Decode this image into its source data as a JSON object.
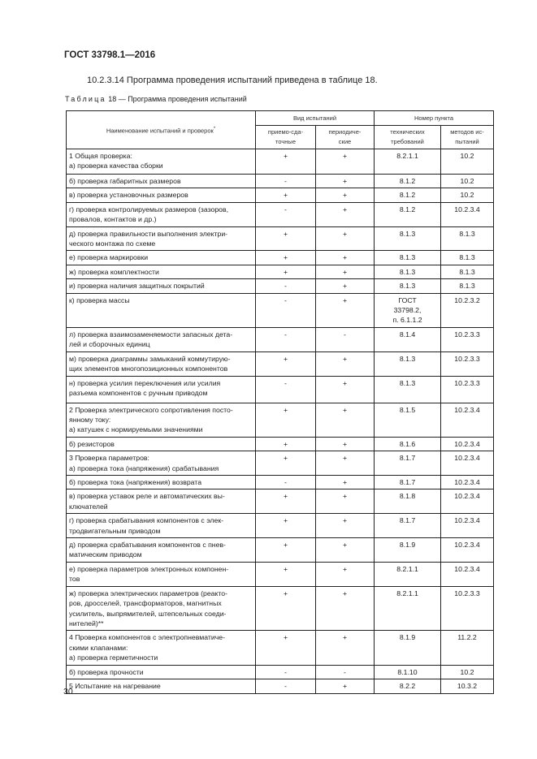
{
  "header": {
    "doc_id": "ГОСТ 33798.1—2016"
  },
  "intro": "10.2.3.14 Программа проведения испытаний приведена в таблице 18.",
  "caption": {
    "label": "Таблица",
    "rest": " 18 — Программа проведения испытаний"
  },
  "table": {
    "headers": {
      "name": "Наименование испытаний и проверок",
      "name_mark": "*",
      "test_type": "Вид испытаний",
      "acceptance": "приемо-сда-\nточные",
      "periodic": "периодиче-\nские",
      "clause": "Номер пункта",
      "tech_req": "технических\nтребований",
      "test_methods": "методов ис-\nпытаний"
    },
    "rows": [
      {
        "name": "1 Общая проверка:\nа) проверка качества сборки",
        "acc": "+",
        "per": "+",
        "req": "8.2.1.1",
        "meth": "10.2"
      },
      {
        "name": "б) проверка габаритных размеров",
        "acc": "-",
        "per": "+",
        "req": "8.1.2",
        "meth": "10.2"
      },
      {
        "name": "в) проверка установочных размеров",
        "acc": "+",
        "per": "+",
        "req": "8.1.2",
        "meth": "10.2"
      },
      {
        "name": "г) проверка контролируемых размеров (зазоров,\nпровалов, контактов и др.)",
        "acc": "-",
        "per": "+",
        "req": "8.1.2",
        "meth": "10.2.3.4"
      },
      {
        "name": "д) проверка правильности выполнения электри-\nческого монтажа по схеме",
        "acc": "+",
        "per": "+",
        "req": "8.1.3",
        "meth": "8.1.3"
      },
      {
        "name": "е) проверка маркировки",
        "acc": "+",
        "per": "+",
        "req": "8.1.3",
        "meth": "8.1.3"
      },
      {
        "name": "ж) проверка комплектности",
        "acc": "+",
        "per": "+",
        "req": "8.1.3",
        "meth": "8.1.3"
      },
      {
        "name": "и) проверка наличия защитных покрытий",
        "acc": "-",
        "per": "+",
        "req": "8.1.3",
        "meth": "8.1.3"
      },
      {
        "name": "к) проверка массы",
        "acc": "-",
        "per": "+",
        "req": "ГОСТ\n33798.2,\nп. 6.1.1.2",
        "meth": "10.2.3.2"
      },
      {
        "name": "л) проверка взаимозаменяемости запасных дета-\nлей и сборочных единиц",
        "acc": "-",
        "per": "-",
        "req": "8.1.4",
        "meth": "10.2.3.3"
      },
      {
        "name": "м) проверка диаграммы замыканий коммутирую-\nщих элементов многопозиционных компонентов",
        "acc": "+",
        "per": "+",
        "req": "8.1.3",
        "meth": "10.2.3.3"
      },
      {
        "name": "н) проверка усилия переключения или усилия\nразъема компонентов с ручным приводом",
        "acc": "-",
        "per": "+",
        "req": "8.1.3",
        "meth": "10.2.3.3"
      },
      {
        "name": "2 Проверка электрического сопротивления посто-\nянному току:\nа) катушек с нормируемыми значениями",
        "acc": "+",
        "per": "+",
        "req": "8.1.5",
        "meth": "10.2.3.4"
      },
      {
        "name": "б) резисторов",
        "acc": "+",
        "per": "+",
        "req": "8.1.6",
        "meth": "10.2.3.4"
      },
      {
        "name": "3 Проверка параметров:\nа) проверка тока (напряжения) срабатывания",
        "acc": "+",
        "per": "+",
        "req": "8.1.7",
        "meth": "10.2.3.4"
      },
      {
        "name": "б) проверка тока (напряжения) возврата",
        "acc": "-",
        "per": "+",
        "req": "8.1.7",
        "meth": "10.2.3.4"
      },
      {
        "name": "в) проверка уставок реле и автоматических вы-\nключателей",
        "acc": "+",
        "per": "+",
        "req": "8.1.8",
        "meth": "10.2.3.4"
      },
      {
        "name": "г) проверка срабатывания компонентов с элек-\nтродвигательным приводом",
        "acc": "+",
        "per": "+",
        "req": "8.1.7",
        "meth": "10.2.3.4"
      },
      {
        "name": "д) проверка срабатывания компонентов с пнев-\nматическим приводом",
        "acc": "+",
        "per": "+",
        "req": "8.1.9",
        "meth": "10.2.3.4"
      },
      {
        "name": "е) проверка параметров электронных компонен-\nтов",
        "acc": "+",
        "per": "+",
        "req": "8.2.1.1",
        "meth": "10.2.3.4"
      },
      {
        "name": "ж) проверка электрических параметров (реакто-\nров, дросселей, трансформаторов, магнитных\nусилитель, выпрямителей, штепсельных соеди-\nнителей)**",
        "acc": "+",
        "per": "+",
        "req": "8.2.1.1",
        "meth": "10.2.3.3"
      },
      {
        "name": "4 Проверка компонентов с электропневматиче-\nскими клапанами:\nа) проверка герметичности",
        "acc": "+",
        "per": "+",
        "req": "8.1.9",
        "meth": "11.2.2"
      },
      {
        "name": "б) проверка прочности",
        "acc": "-",
        "per": "-",
        "req": "8.1.10",
        "meth": "10.2"
      },
      {
        "name": "5 Испытание на нагревание",
        "acc": "-",
        "per": "+",
        "req": "8.2.2",
        "meth": "10.3.2"
      }
    ]
  },
  "page_number": "30"
}
